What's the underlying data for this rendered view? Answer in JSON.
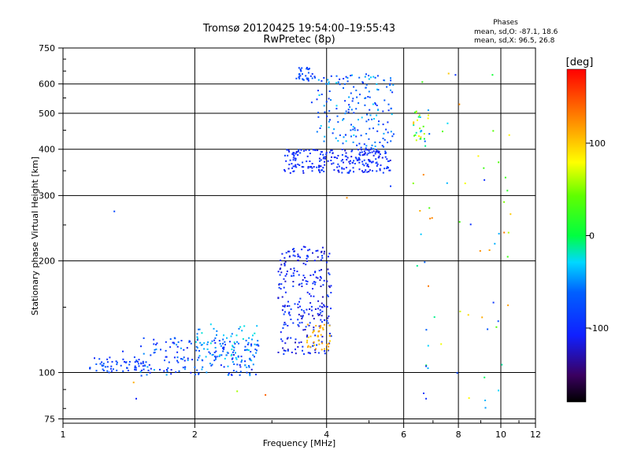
{
  "chart_data": {
    "type": "scatter",
    "title": "Tromsø 20120425 19:54:00–19:55:43",
    "subtitle": "RwPretec (8p)",
    "phases_header": "Phases",
    "phases_lines": [
      "mean, sd,O: -87.1, 18.6",
      "mean, sd,X:  96.5, 26.8"
    ],
    "xlabel": "Frequency [MHz]",
    "ylabel": "Stationary phase Virtual Height [km]",
    "xscale": "log",
    "yscale": "log",
    "xlim": [
      1,
      12
    ],
    "ylim": [
      73,
      750
    ],
    "xticks": [
      1,
      2,
      4,
      6,
      8,
      10,
      12
    ],
    "xticklabels": [
      "1",
      "2",
      "4",
      "6",
      "8",
      "10",
      "12"
    ],
    "yticks": [
      75,
      100,
      200,
      300,
      400,
      500,
      600,
      750
    ],
    "yticklabels": [
      "75",
      "100",
      "200",
      "300",
      "400",
      "500",
      "600",
      "750"
    ],
    "grid": true,
    "colorbar": {
      "label": "[deg]",
      "range": [
        -180,
        180
      ],
      "ticks": [
        100,
        0,
        -100
      ],
      "ticklabels": [
        "100",
        "0",
        "-100"
      ]
    },
    "clusters": [
      {
        "x_range": [
          1.15,
          1.55
        ],
        "y_range": [
          100,
          110
        ],
        "phase": [
          -110,
          -60
        ],
        "count": 60
      },
      {
        "x_range": [
          1.5,
          2.8
        ],
        "y_range": [
          98,
          125
        ],
        "phase": [
          -120,
          -40
        ],
        "count": 180
      },
      {
        "x_range": [
          2.0,
          2.8
        ],
        "y_range": [
          103,
          135
        ],
        "phase": [
          -60,
          -20
        ],
        "count": 70
      },
      {
        "x_range": [
          3.1,
          4.1
        ],
        "y_range": [
          112,
          220
        ],
        "phase": [
          -130,
          -80
        ],
        "count": 260
      },
      {
        "x_range": [
          3.6,
          4.1
        ],
        "y_range": [
          115,
          135
        ],
        "phase": [
          95,
          120
        ],
        "count": 40
      },
      {
        "x_range": [
          3.2,
          5.6
        ],
        "y_range": [
          345,
          400
        ],
        "phase": [
          -120,
          -80
        ],
        "count": 240
      },
      {
        "x_range": [
          3.8,
          5.7
        ],
        "y_range": [
          400,
          640
        ],
        "phase": [
          -100,
          -30
        ],
        "count": 180
      },
      {
        "x_range": [
          3.4,
          3.8
        ],
        "y_range": [
          612,
          665
        ],
        "phase": [
          -100,
          -60
        ],
        "count": 35
      },
      {
        "x_range": [
          6.3,
          6.9
        ],
        "y_range": [
          400,
          510
        ],
        "phase": [
          -80,
          110
        ],
        "count": 30
      },
      {
        "x_range": [
          6.3,
          10.6
        ],
        "y_range": [
          80,
          640
        ],
        "phase": [
          -110,
          130
        ],
        "count": 60
      }
    ],
    "outliers": [
      {
        "x": 1.31,
        "y": 272,
        "phase": -80
      },
      {
        "x": 1.37,
        "y": 114,
        "phase": -100
      },
      {
        "x": 1.45,
        "y": 94,
        "phase": 110
      },
      {
        "x": 1.47,
        "y": 85,
        "phase": -110
      },
      {
        "x": 2.5,
        "y": 89,
        "phase": 60
      },
      {
        "x": 2.9,
        "y": 87,
        "phase": 140
      },
      {
        "x": 4.45,
        "y": 296,
        "phase": 120
      },
      {
        "x": 3.7,
        "y": 535,
        "phase": -90
      },
      {
        "x": 5.6,
        "y": 318,
        "phase": -90
      },
      {
        "x": 6.75,
        "y": 85,
        "phase": -100
      },
      {
        "x": 6.75,
        "y": 104,
        "phase": -100
      },
      {
        "x": 7.6,
        "y": 640,
        "phase": 100
      }
    ]
  }
}
